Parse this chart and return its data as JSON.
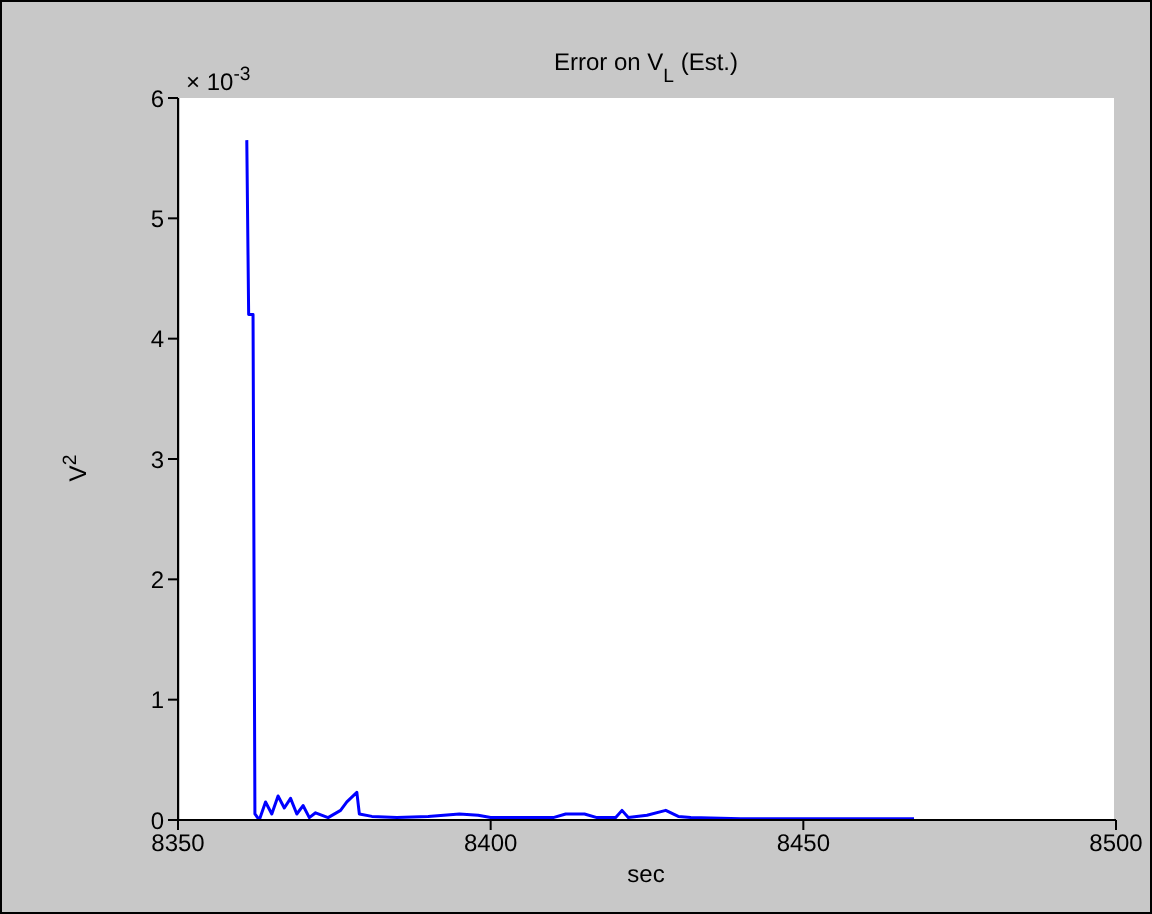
{
  "chart_data": {
    "type": "line",
    "title": "Error on V$_{L}$ (Est.)",
    "xlabel": "sec",
    "ylabel": "V$^{2}$",
    "annotations": [
      "× 10$^{-3}$"
    ],
    "xlim": [
      8350,
      8500
    ],
    "xticks": [
      8350,
      8400,
      8450,
      8500
    ],
    "ylim": [
      0,
      6
    ],
    "yticks": [
      0,
      1,
      2,
      3,
      4,
      5,
      6
    ],
    "marker": "none",
    "line_style": "solid",
    "series": [
      {
        "color": "#0000ff",
        "x": [
          8361,
          8361.3,
          8362,
          8362.3,
          8363,
          8364,
          8365,
          8366,
          8367,
          8368,
          8369,
          8370,
          8371,
          8372,
          8374,
          8376,
          8377,
          8378.6,
          8379,
          8381,
          8385,
          8390,
          8395,
          8398,
          8400,
          8405,
          8410,
          8412,
          8415,
          8417,
          8420,
          8421,
          8422,
          8425,
          8428,
          8430,
          8432,
          8440,
          8450,
          8460,
          8467.7
        ],
        "values": [
          5.65,
          4.2,
          4.2,
          0.05,
          0,
          0.15,
          0.05,
          0.2,
          0.1,
          0.18,
          0.05,
          0.12,
          0.02,
          0.06,
          0.02,
          0.08,
          0.15,
          0.23,
          0.05,
          0.03,
          0.02,
          0.03,
          0.05,
          0.04,
          0.02,
          0.02,
          0.02,
          0.05,
          0.05,
          0.02,
          0.02,
          0.08,
          0.02,
          0.04,
          0.08,
          0.03,
          0.02,
          0.01,
          0.01,
          0.01,
          0.01
        ]
      }
    ]
  }
}
